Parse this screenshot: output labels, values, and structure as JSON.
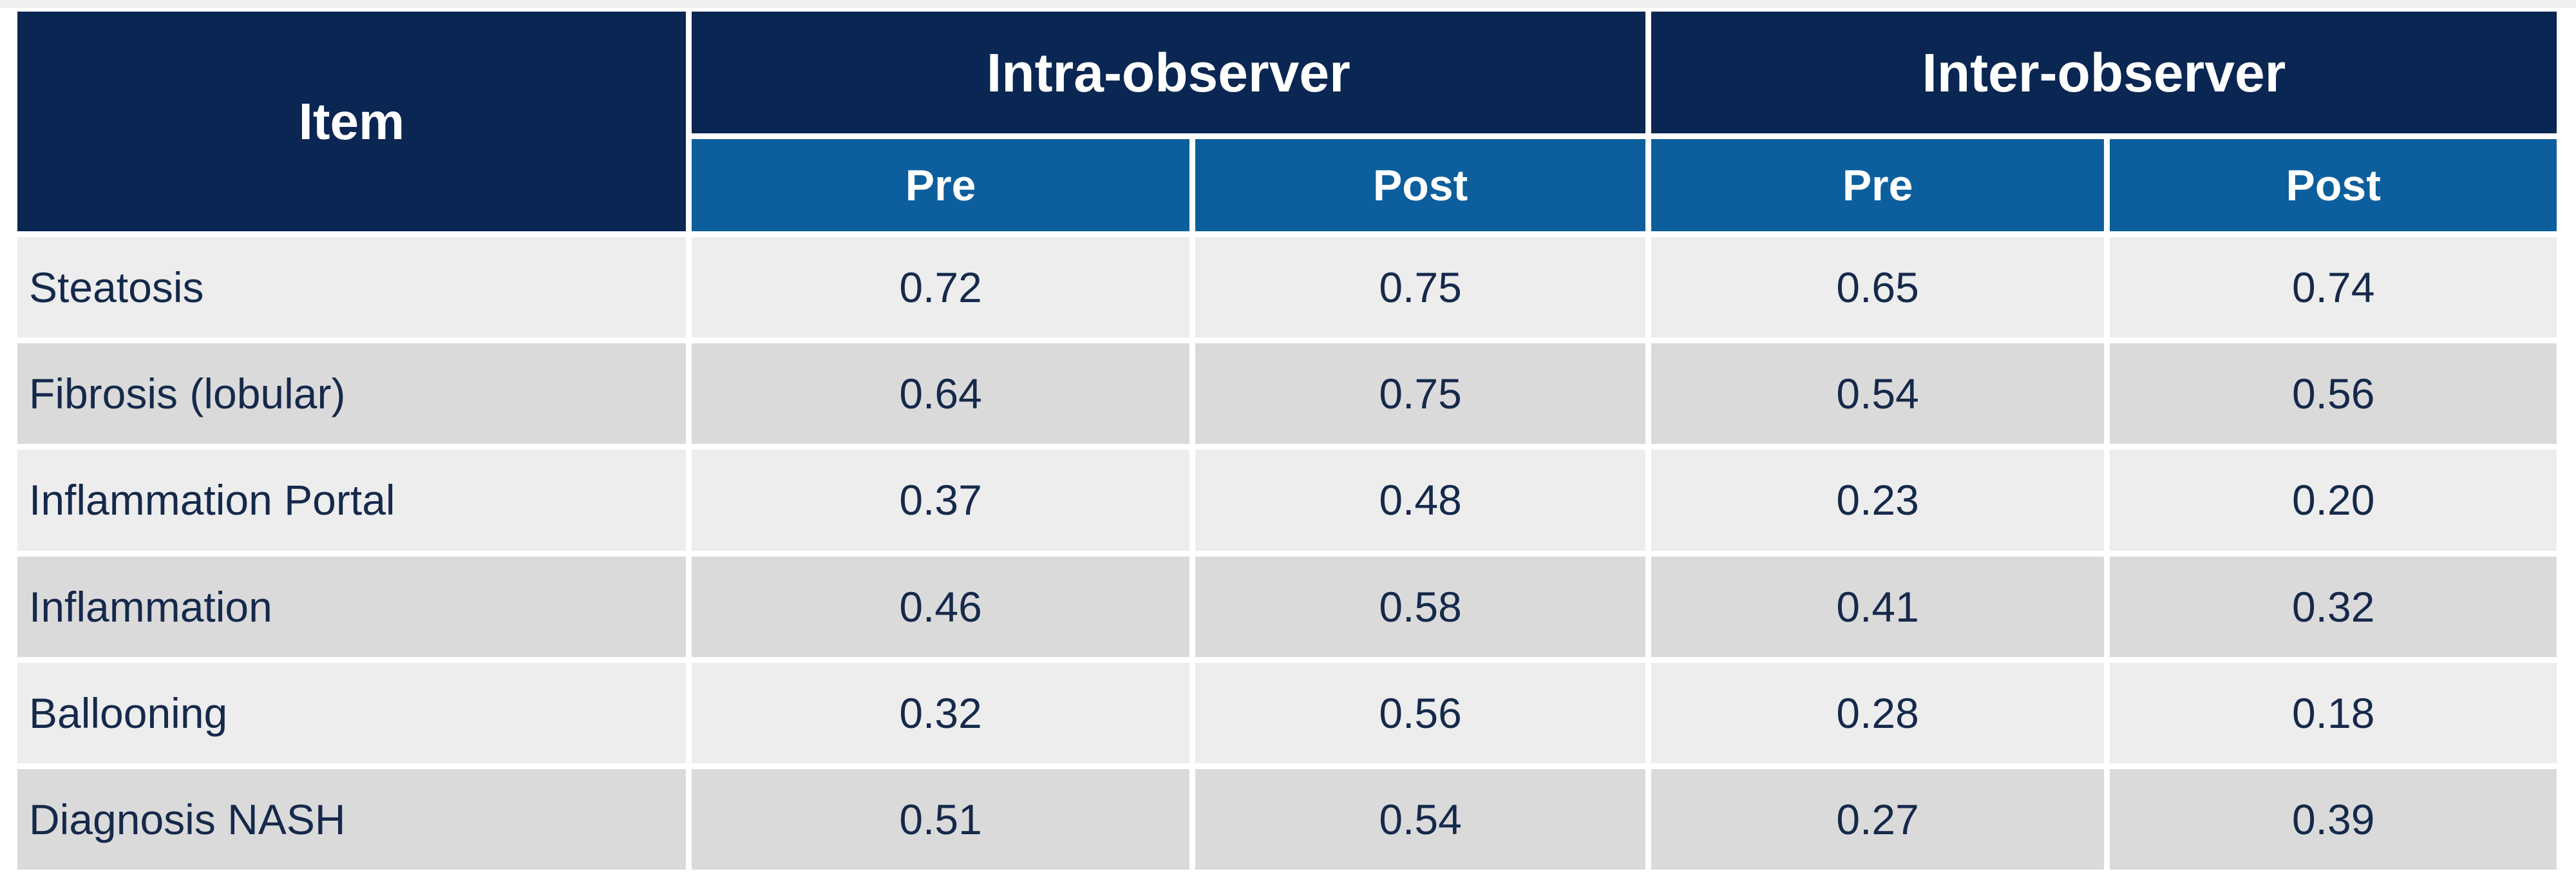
{
  "table": {
    "item_header": "Item",
    "groups": [
      {
        "label": "Intra-observer",
        "subcolumns": [
          "Pre",
          "Post"
        ]
      },
      {
        "label": "Inter-observer",
        "subcolumns": [
          "Pre",
          "Post"
        ]
      }
    ],
    "rows": [
      {
        "item": "Steatosis",
        "values": [
          "0.72",
          "0.75",
          "0.65",
          "0.74"
        ]
      },
      {
        "item": "Fibrosis (lobular)",
        "values": [
          "0.64",
          "0.75",
          "0.54",
          "0.56"
        ]
      },
      {
        "item": "Inflammation Portal",
        "values": [
          "0.37",
          "0.48",
          "0.23",
          "0.20"
        ]
      },
      {
        "item": "Inflammation",
        "values": [
          "0.46",
          "0.58",
          "0.41",
          "0.32"
        ]
      },
      {
        "item": "Ballooning",
        "values": [
          "0.32",
          "0.56",
          "0.28",
          "0.18"
        ]
      },
      {
        "item": "Diagnosis NASH",
        "values": [
          "0.51",
          "0.54",
          "0.27",
          "0.39"
        ]
      }
    ],
    "colors": {
      "header_dark_navy": "#0A2653",
      "header_medium_blue": "#0C5F9C",
      "row_light_gray": "#EDEDEE",
      "row_dark_gray": "#DADADA",
      "body_text_navy": "#15294B",
      "separator_white": "#FFFFFF",
      "header_text_white": "#FFFFFF"
    }
  },
  "chart_data": {
    "type": "table",
    "title": "",
    "columns": [
      "Item",
      "Intra-observer Pre",
      "Intra-observer Post",
      "Inter-observer Pre",
      "Inter-observer Post"
    ],
    "column_groups": [
      {
        "label": "Intra-observer",
        "children": [
          "Pre",
          "Post"
        ]
      },
      {
        "label": "Inter-observer",
        "children": [
          "Pre",
          "Post"
        ]
      }
    ],
    "rows": [
      [
        "Steatosis",
        0.72,
        0.75,
        0.65,
        0.74
      ],
      [
        "Fibrosis (lobular)",
        0.64,
        0.75,
        0.54,
        0.56
      ],
      [
        "Inflammation Portal",
        0.37,
        0.48,
        0.23,
        0.2
      ],
      [
        "Inflammation",
        0.46,
        0.58,
        0.41,
        0.32
      ],
      [
        "Ballooning",
        0.32,
        0.56,
        0.28,
        0.18
      ],
      [
        "Diagnosis NASH",
        0.51,
        0.54,
        0.27,
        0.39
      ]
    ]
  }
}
